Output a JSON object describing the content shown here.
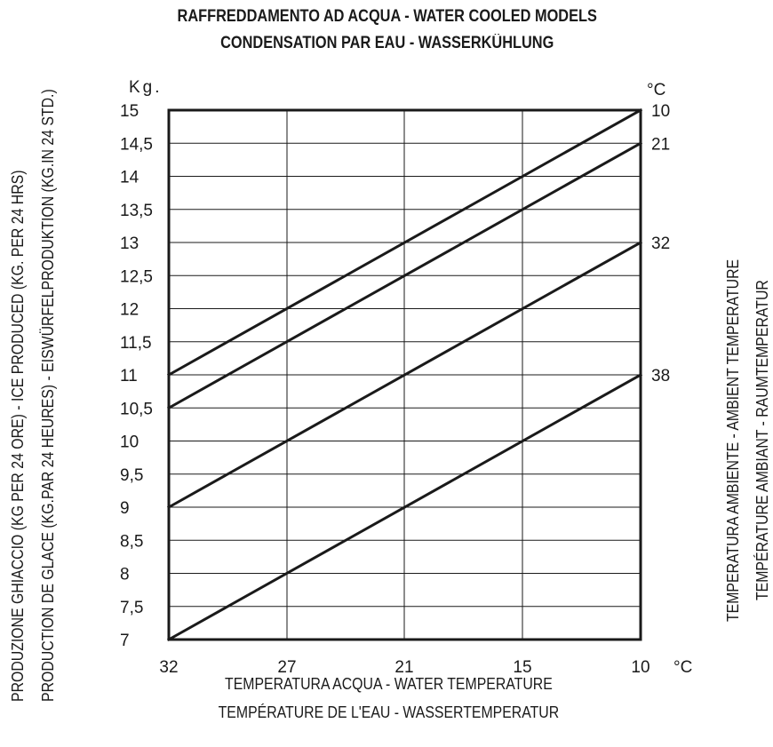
{
  "chart_data": {
    "type": "line",
    "title": [
      "RAFFREDDAMENTO AD ACQUA - WATER COOLED MODELS",
      "CONDENSATION PAR EAU - WASSERKÜHLUNG"
    ],
    "xlabel": [
      "TEMPERATURA ACQUA - WATER TEMPERATURE",
      "TEMPÉRATURE DE L'EAU  - WASSERTEMPERATUR"
    ],
    "ylabel": [
      "PRODUZIONE GHIACCIO (KG PER 24 ORE) - ICE PRODUCED (KG. PER 24 HRS)",
      "PRODUCTION DE GLACE (KG.PAR 24 HEURES) - EISWÜRFELPRODUKTION (KG.IN 24 STD.)"
    ],
    "y2label": [
      "TEMPERATURA AMBIENTE - AMBIENT TEMPERATURE",
      "TEMPÉRATURE AMBIANT - RAUMTEMPERATUR"
    ],
    "y_unit": "Kg.",
    "x_unit": "°C",
    "y2_unit": "°C",
    "x_ticks": [
      "32",
      "27",
      "21",
      "15",
      "10"
    ],
    "y_ticks": [
      "15",
      "14,5",
      "14",
      "13,5",
      "13",
      "12,5",
      "12",
      "11,5",
      "11",
      "10,5",
      "10",
      "9,5",
      "9",
      "8,5",
      "8",
      "7,5",
      "7"
    ],
    "ylim": [
      7,
      15
    ],
    "x_reversed": true,
    "grid": true,
    "series": [
      {
        "name": "10",
        "x": [
          32,
          10
        ],
        "y": [
          11,
          15
        ]
      },
      {
        "name": "21",
        "x": [
          32,
          10
        ],
        "y": [
          10.5,
          14.5
        ]
      },
      {
        "name": "32",
        "x": [
          32,
          10
        ],
        "y": [
          9,
          13
        ]
      },
      {
        "name": "38",
        "x": [
          32,
          10
        ],
        "y": [
          7,
          11
        ]
      }
    ]
  }
}
